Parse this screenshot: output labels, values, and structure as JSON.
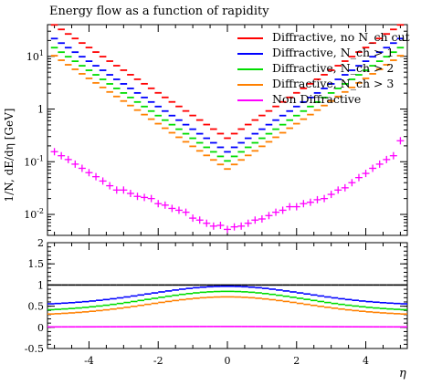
{
  "title": "Energy flow as a function of rapidity",
  "xlabel": "η",
  "ylabel": "1/N, dE/dη [GeV]",
  "legend": [
    {
      "label": "Diffractive, no N_ch cut",
      "color": "#ff0000"
    },
    {
      "label": "Diffractive, N_ch > 1",
      "color": "#0000ff"
    },
    {
      "label": "Diffractive, N_ch > 2",
      "color": "#00dd00"
    },
    {
      "label": "Diffractive, N_ch > 3",
      "color": "#ff8000"
    },
    {
      "label": "Non Diffractive",
      "color": "#ff00ff"
    }
  ],
  "chart_data": [
    {
      "type": "line",
      "panel": "main",
      "yscale": "log",
      "xlim": [
        -5.2,
        5.2
      ],
      "ylim": [
        0.004,
        40
      ],
      "yticks": [
        "10^-2",
        "10^-1",
        "1",
        "10^1"
      ],
      "series": [
        {
          "name": "Diffractive, no N_ch cut",
          "color": "#ff0000",
          "style": "histogram",
          "x": [
            -5,
            -4.8,
            -4.6,
            -4.4,
            -4.2,
            -4.0,
            -3.8,
            -3.6,
            -3.4,
            -3.2,
            -3.0,
            -2.8,
            -2.6,
            -2.4,
            -2.2,
            -2.0,
            -1.8,
            -1.6,
            -1.4,
            -1.2,
            -1.0,
            -0.8,
            -0.6,
            -0.4,
            -0.2,
            0.0,
            0.2,
            0.4,
            0.6,
            0.8,
            1.0,
            1.2,
            1.4,
            1.6,
            1.8,
            2.0,
            2.2,
            2.4,
            2.6,
            2.8,
            3.0,
            3.2,
            3.4,
            3.6,
            3.8,
            4.0,
            4.2,
            4.4,
            4.6,
            4.8,
            5.0
          ],
          "y": [
            20.0,
            15.85,
            12.56,
            9.96,
            7.89,
            6.26,
            4.96,
            3.93,
            3.12,
            2.47,
            1.96,
            1.55,
            1.23,
            0.977,
            0.774,
            0.614,
            0.487,
            0.386,
            0.306,
            0.243,
            0.193,
            0.153,
            0.121,
            0.0962,
            0.0763,
            0.28,
            0.0763,
            0.0962,
            0.121,
            0.153,
            0.193,
            0.243,
            0.306,
            0.386,
            0.487,
            0.614,
            0.774,
            0.977,
            1.23,
            1.55,
            1.96,
            2.47,
            3.12,
            3.93,
            4.96,
            6.26,
            7.89,
            9.96,
            12.56,
            15.85,
            20.0
          ]
        },
        {
          "name": "Diffractive, N_ch > 1",
          "color": "#0000ff",
          "style": "histogram",
          "scale": 0.55
        },
        {
          "name": "Diffractive, N_ch > 2",
          "color": "#00dd00",
          "style": "histogram",
          "scale": 0.37
        },
        {
          "name": "Diffractive, N_ch > 3",
          "color": "#ff8000",
          "style": "histogram",
          "scale": 0.26
        },
        {
          "name": "Non Diffractive",
          "color": "#ff00ff",
          "style": "markers",
          "x": [
            -5.0,
            -4.8,
            -4.6,
            -4.4,
            -4.2,
            -4.0,
            -3.8,
            -3.6,
            -3.4,
            -3.2,
            -3.0,
            -2.8,
            -2.6,
            -2.4,
            -2.2,
            -2.0,
            -1.8,
            -1.6,
            -1.4,
            -1.2,
            -1.0,
            -0.8,
            -0.6,
            -0.4,
            -0.2,
            0.0,
            0.2,
            0.4,
            0.6,
            0.8,
            1.0,
            1.2,
            1.4,
            1.6,
            1.8,
            2.0,
            2.2,
            2.4,
            2.6,
            2.8,
            3.0,
            3.2,
            3.4,
            3.6,
            3.8,
            4.0,
            4.2,
            4.4,
            4.6,
            4.8,
            5.0
          ],
          "y": [
            0.155,
            0.13,
            0.11,
            0.09,
            0.075,
            0.062,
            0.052,
            0.043,
            0.035,
            0.029,
            0.029,
            0.025,
            0.022,
            0.021,
            0.02,
            0.016,
            0.015,
            0.013,
            0.012,
            0.011,
            0.0085,
            0.0078,
            0.0068,
            0.006,
            0.0062,
            0.0052,
            0.0058,
            0.006,
            0.0068,
            0.0078,
            0.0082,
            0.0095,
            0.011,
            0.012,
            0.014,
            0.014,
            0.016,
            0.017,
            0.019,
            0.02,
            0.024,
            0.029,
            0.032,
            0.04,
            0.05,
            0.06,
            0.075,
            0.09,
            0.11,
            0.13,
            0.25
          ]
        }
      ]
    },
    {
      "type": "line",
      "panel": "ratio",
      "xlim": [
        -5.2,
        5.2
      ],
      "ylim": [
        -0.5,
        2.0
      ],
      "yticks": [
        "-0.5",
        "0",
        "0.5",
        "1",
        "1.5",
        "2"
      ],
      "xticks": [
        "-4",
        "-2",
        "0",
        "2",
        "4"
      ],
      "series": [
        {
          "name": "Diffractive, no N_ch cut",
          "color": "#000000",
          "center": 1.0,
          "edge": 1.0
        },
        {
          "name": "Diffractive, N_ch > 1",
          "color": "#0000ff",
          "center": 0.97,
          "edge": 0.52
        },
        {
          "name": "Diffractive, N_ch > 2",
          "color": "#00dd00",
          "center": 0.85,
          "edge": 0.38
        },
        {
          "name": "Diffractive, N_ch > 3",
          "color": "#ff8000",
          "center": 0.72,
          "edge": 0.28
        },
        {
          "name": "Non Diffractive",
          "color": "#ff00ff",
          "center": 0.02,
          "edge": 0.01
        }
      ]
    }
  ]
}
